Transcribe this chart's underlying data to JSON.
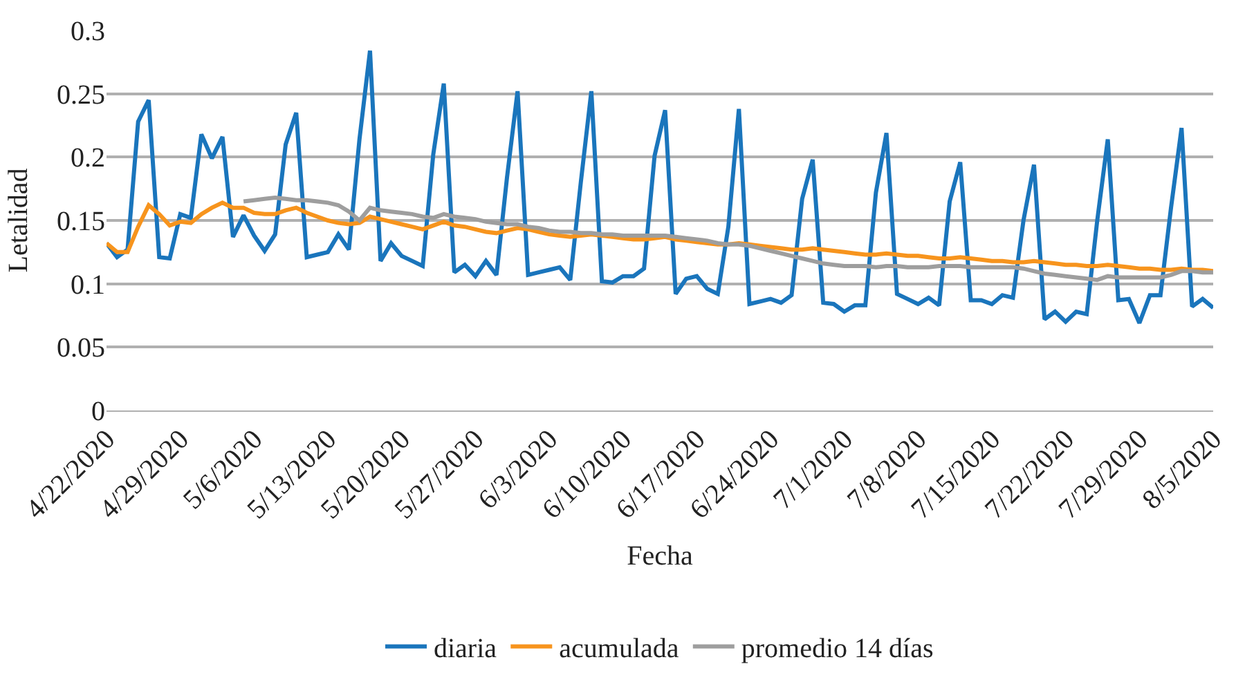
{
  "chart_data": {
    "type": "line",
    "xlabel": "Fecha",
    "ylabel": "Letalidad",
    "x": [
      "2020-04-22",
      "2020-04-23",
      "2020-04-24",
      "2020-04-25",
      "2020-04-26",
      "2020-04-27",
      "2020-04-28",
      "2020-04-29",
      "2020-04-30",
      "2020-05-01",
      "2020-05-02",
      "2020-05-03",
      "2020-05-04",
      "2020-05-05",
      "2020-05-06",
      "2020-05-07",
      "2020-05-08",
      "2020-05-09",
      "2020-05-10",
      "2020-05-11",
      "2020-05-12",
      "2020-05-13",
      "2020-05-14",
      "2020-05-15",
      "2020-05-16",
      "2020-05-17",
      "2020-05-18",
      "2020-05-19",
      "2020-05-20",
      "2020-05-21",
      "2020-05-22",
      "2020-05-23",
      "2020-05-24",
      "2020-05-25",
      "2020-05-26",
      "2020-05-27",
      "2020-05-28",
      "2020-05-29",
      "2020-05-30",
      "2020-05-31",
      "2020-06-01",
      "2020-06-02",
      "2020-06-03",
      "2020-06-04",
      "2020-06-05",
      "2020-06-06",
      "2020-06-07",
      "2020-06-08",
      "2020-06-09",
      "2020-06-10",
      "2020-06-11",
      "2020-06-12",
      "2020-06-13",
      "2020-06-14",
      "2020-06-15",
      "2020-06-16",
      "2020-06-17",
      "2020-06-18",
      "2020-06-19",
      "2020-06-20",
      "2020-06-21",
      "2020-06-22",
      "2020-06-23",
      "2020-06-24",
      "2020-06-25",
      "2020-06-26",
      "2020-06-27",
      "2020-06-28",
      "2020-06-29",
      "2020-06-30",
      "2020-07-01",
      "2020-07-02",
      "2020-07-03",
      "2020-07-04",
      "2020-07-05",
      "2020-07-06",
      "2020-07-07",
      "2020-07-08",
      "2020-07-09",
      "2020-07-10",
      "2020-07-11",
      "2020-07-12",
      "2020-07-13",
      "2020-07-14",
      "2020-07-15",
      "2020-07-16",
      "2020-07-17",
      "2020-07-18",
      "2020-07-19",
      "2020-07-20",
      "2020-07-21",
      "2020-07-22",
      "2020-07-23",
      "2020-07-24",
      "2020-07-25",
      "2020-07-26",
      "2020-07-27",
      "2020-07-28",
      "2020-07-29",
      "2020-07-30",
      "2020-07-31",
      "2020-08-01",
      "2020-08-02",
      "2020-08-03",
      "2020-08-04",
      "2020-08-05"
    ],
    "series": [
      {
        "name": "diaria",
        "color": "#1a75bc",
        "values": [
          0.132,
          0.121,
          0.127,
          0.228,
          0.245,
          0.121,
          0.12,
          0.155,
          0.152,
          0.218,
          0.199,
          0.216,
          0.137,
          0.154,
          0.138,
          0.126,
          0.139,
          0.21,
          0.235,
          0.121,
          0.123,
          0.125,
          0.139,
          0.127,
          0.214,
          0.284,
          0.118,
          0.132,
          0.122,
          0.118,
          0.114,
          0.202,
          0.258,
          0.109,
          0.115,
          0.106,
          0.118,
          0.107,
          0.184,
          0.252,
          0.107,
          0.109,
          0.111,
          0.113,
          0.103,
          0.18,
          0.252,
          0.102,
          0.101,
          0.106,
          0.106,
          0.112,
          0.201,
          0.237,
          0.092,
          0.104,
          0.106,
          0.096,
          0.092,
          0.145,
          0.238,
          0.084,
          0.086,
          0.088,
          0.085,
          0.091,
          0.167,
          0.198,
          0.085,
          0.084,
          0.078,
          0.083,
          0.083,
          0.172,
          0.219,
          0.092,
          0.088,
          0.084,
          0.089,
          0.083,
          0.165,
          0.196,
          0.087,
          0.087,
          0.084,
          0.091,
          0.089,
          0.15,
          0.194,
          0.072,
          0.078,
          0.07,
          0.078,
          0.076,
          0.15,
          0.214,
          0.087,
          0.088,
          0.069,
          0.091,
          0.091,
          0.16,
          0.223,
          0.082,
          0.088,
          0.081
        ]
      },
      {
        "name": "acumulada",
        "color": "#f7941d",
        "values": [
          0.132,
          0.125,
          0.125,
          0.145,
          0.162,
          0.155,
          0.146,
          0.149,
          0.148,
          0.155,
          0.16,
          0.164,
          0.16,
          0.16,
          0.156,
          0.155,
          0.155,
          0.158,
          0.16,
          0.156,
          0.153,
          0.15,
          0.148,
          0.147,
          0.148,
          0.153,
          0.151,
          0.149,
          0.147,
          0.145,
          0.143,
          0.146,
          0.149,
          0.146,
          0.145,
          0.143,
          0.141,
          0.14,
          0.142,
          0.144,
          0.143,
          0.141,
          0.139,
          0.138,
          0.137,
          0.138,
          0.139,
          0.138,
          0.137,
          0.136,
          0.135,
          0.135,
          0.136,
          0.137,
          0.135,
          0.134,
          0.133,
          0.132,
          0.131,
          0.131,
          0.132,
          0.131,
          0.13,
          0.129,
          0.128,
          0.127,
          0.127,
          0.128,
          0.127,
          0.126,
          0.125,
          0.124,
          0.123,
          0.123,
          0.124,
          0.123,
          0.122,
          0.122,
          0.121,
          0.12,
          0.12,
          0.121,
          0.12,
          0.119,
          0.118,
          0.118,
          0.117,
          0.117,
          0.118,
          0.117,
          0.116,
          0.115,
          0.115,
          0.114,
          0.114,
          0.115,
          0.114,
          0.113,
          0.112,
          0.112,
          0.111,
          0.111,
          0.112,
          0.111,
          0.111,
          0.11
        ]
      },
      {
        "name": "promedio 14 días",
        "color": "#9e9e9e",
        "values": [
          null,
          null,
          null,
          null,
          null,
          null,
          null,
          null,
          null,
          null,
          null,
          null,
          null,
          0.165,
          0.166,
          0.167,
          0.168,
          0.167,
          0.166,
          0.166,
          0.165,
          0.164,
          0.162,
          0.157,
          0.15,
          0.16,
          0.158,
          0.157,
          0.156,
          0.155,
          0.153,
          0.152,
          0.155,
          0.153,
          0.152,
          0.151,
          0.149,
          0.148,
          0.147,
          0.147,
          0.145,
          0.144,
          0.142,
          0.141,
          0.141,
          0.14,
          0.14,
          0.139,
          0.139,
          0.138,
          0.138,
          0.138,
          0.138,
          0.138,
          0.137,
          0.136,
          0.135,
          0.134,
          0.132,
          0.131,
          0.131,
          0.13,
          0.128,
          0.126,
          0.124,
          0.122,
          0.12,
          0.118,
          0.116,
          0.115,
          0.114,
          0.114,
          0.114,
          0.113,
          0.114,
          0.114,
          0.113,
          0.113,
          0.113,
          0.114,
          0.114,
          0.114,
          0.113,
          0.113,
          0.113,
          0.113,
          0.113,
          0.112,
          0.11,
          0.108,
          0.107,
          0.106,
          0.105,
          0.104,
          0.103,
          0.106,
          0.105,
          0.105,
          0.105,
          0.105,
          0.105,
          0.107,
          0.11,
          0.11,
          0.109,
          0.109
        ]
      }
    ],
    "xlim": [
      "2020-04-22",
      "2020-08-05"
    ],
    "xticks": [
      {
        "value": "2020-04-22",
        "label": "4/22/2020"
      },
      {
        "value": "2020-04-29",
        "label": "4/29/2020"
      },
      {
        "value": "2020-05-06",
        "label": "5/6/2020"
      },
      {
        "value": "2020-05-13",
        "label": "5/13/2020"
      },
      {
        "value": "2020-05-20",
        "label": "5/20/2020"
      },
      {
        "value": "2020-05-27",
        "label": "5/27/2020"
      },
      {
        "value": "2020-06-03",
        "label": "6/3/2020"
      },
      {
        "value": "2020-06-10",
        "label": "6/10/2020"
      },
      {
        "value": "2020-06-17",
        "label": "6/17/2020"
      },
      {
        "value": "2020-06-24",
        "label": "6/24/2020"
      },
      {
        "value": "2020-07-01",
        "label": "7/1/2020"
      },
      {
        "value": "2020-07-08",
        "label": "7/8/2020"
      },
      {
        "value": "2020-07-15",
        "label": "7/15/2020"
      },
      {
        "value": "2020-07-22",
        "label": "7/22/2020"
      },
      {
        "value": "2020-07-29",
        "label": "7/29/2020"
      },
      {
        "value": "2020-08-05",
        "label": "8/5/2020"
      }
    ],
    "ylim": [
      0,
      0.3
    ],
    "yticks": [
      0,
      0.05,
      0.1,
      0.15,
      0.2,
      0.25,
      0.3
    ],
    "grid": "y",
    "legend": "bottom",
    "marker": "none",
    "line_style": "solid"
  }
}
